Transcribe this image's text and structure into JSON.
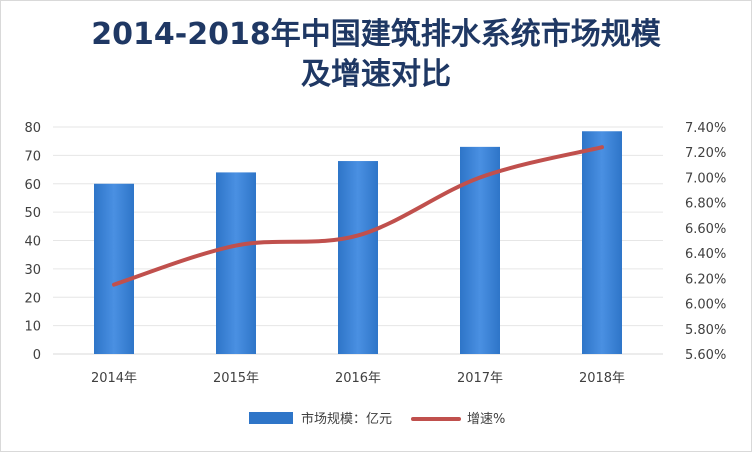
{
  "chart_data": {
    "type": "bar",
    "title_lines": [
      "2014-2018年中国建筑排水系统市场规模",
      "及增速对比"
    ],
    "categories": [
      "2014年",
      "2015年",
      "2016年",
      "2017年",
      "2018年"
    ],
    "series": [
      {
        "name": "市场规模：亿元",
        "type": "bar",
        "axis": "left",
        "values": [
          60,
          64,
          68,
          73,
          78.5
        ]
      },
      {
        "name": "增速%",
        "type": "line",
        "axis": "right",
        "values": [
          6.15,
          6.46,
          6.54,
          7.0,
          7.24
        ]
      }
    ],
    "y_left": {
      "lim": [
        0,
        80
      ],
      "ticks": [
        "0",
        "10",
        "20",
        "30",
        "40",
        "50",
        "60",
        "70",
        "80"
      ]
    },
    "y_right": {
      "lim": [
        5.6,
        7.4
      ],
      "ticks": [
        "5.60%",
        "5.80%",
        "6.00%",
        "6.20%",
        "6.40%",
        "6.60%",
        "6.80%",
        "7.00%",
        "7.20%",
        "7.40%"
      ]
    },
    "grid": true,
    "legend_position": "bottom",
    "colors": {
      "bar": "#2e75c8",
      "bar_light": "#4a90e2",
      "line": "#c0504d",
      "grid": "#e6e6e6"
    }
  }
}
